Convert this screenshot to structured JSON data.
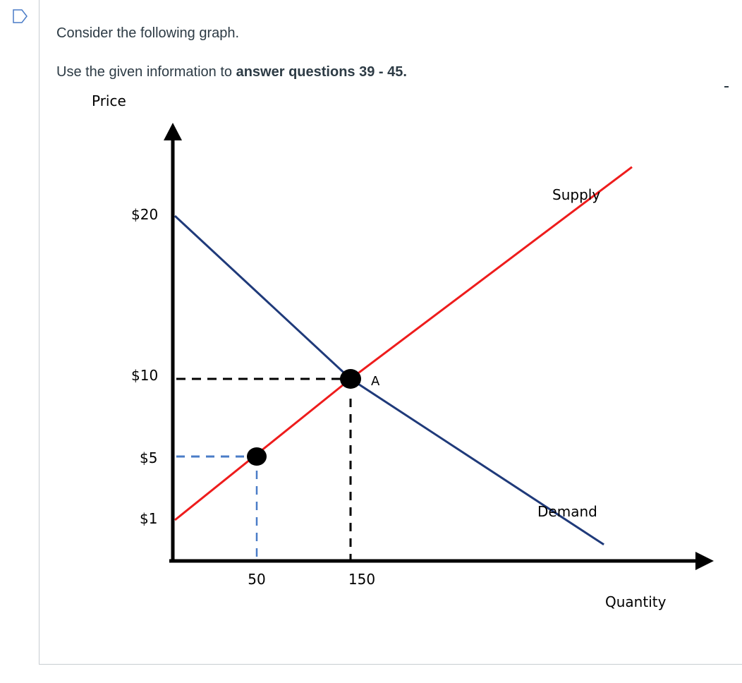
{
  "question": {
    "line1": "Consider the following graph.",
    "line2_prefix": "Use the given information to ",
    "line2_bold": "answer questions 39 - 45."
  },
  "chart_data": {
    "type": "line",
    "xlabel": "Quantity",
    "ylabel": "Price",
    "xtick_labels": [
      {
        "value": 50,
        "label": "50"
      },
      {
        "value": 150,
        "label": "150"
      }
    ],
    "ytick_labels": [
      {
        "value": 20,
        "label": "$20"
      },
      {
        "value": 10,
        "label": "$10"
      },
      {
        "value": 5,
        "label": "$5"
      },
      {
        "value": 1,
        "label": "$1"
      }
    ],
    "series": [
      {
        "name": "Supply",
        "color": "#ee1c1c",
        "points": [
          [
            0,
            1
          ],
          [
            150,
            10
          ],
          [
            450,
            23
          ]
        ]
      },
      {
        "name": "Demand",
        "color": "#1f3a7a",
        "points": [
          [
            0,
            20
          ],
          [
            150,
            10
          ],
          [
            420,
            0.4
          ]
        ]
      }
    ],
    "points": [
      {
        "label": "A",
        "x": 150,
        "y": 10
      },
      {
        "label": "",
        "x": 50,
        "y": 5
      }
    ],
    "guide_colors": {
      "equilibrium": "#000000",
      "lower": "#4a7cc7"
    }
  }
}
